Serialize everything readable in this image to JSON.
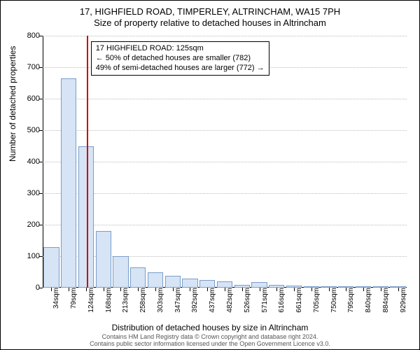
{
  "title": {
    "line1": "17, HIGHFIELD ROAD, TIMPERLEY, ALTRINCHAM, WA15 7PH",
    "line2": "Size of property relative to detached houses in Altrincham"
  },
  "chart": {
    "type": "bar",
    "bar_fill": "#d6e4f5",
    "bar_stroke": "#7a9ec9",
    "background_color": "#ffffff",
    "grid_color": "#bbbbbb",
    "yaxis": {
      "label": "Number of detached properties",
      "min": 0,
      "max": 800,
      "step": 100,
      "label_fontsize": 12,
      "tick_fontsize": 11
    },
    "xaxis": {
      "label": "Distribution of detached houses by size in Altrincham",
      "label_fontsize": 12,
      "tick_fontsize": 10,
      "ticks": [
        "34sqm",
        "79sqm",
        "124sqm",
        "168sqm",
        "213sqm",
        "258sqm",
        "303sqm",
        "347sqm",
        "392sqm",
        "437sqm",
        "482sqm",
        "526sqm",
        "571sqm",
        "616sqm",
        "661sqm",
        "705sqm",
        "750sqm",
        "795sqm",
        "840sqm",
        "884sqm",
        "929sqm"
      ]
    },
    "values": [
      130,
      665,
      450,
      180,
      100,
      65,
      48,
      38,
      30,
      25,
      20,
      8,
      18,
      8,
      6,
      5,
      4,
      4,
      3,
      3,
      2
    ],
    "marker": {
      "color": "#cc0000",
      "x_value": 125,
      "x_range_min": 34,
      "x_range_max": 929
    },
    "infobox": {
      "line1": "17 HIGHFIELD ROAD: 125sqm",
      "line2": "← 50% of detached houses are smaller (782)",
      "line3": "49% of semi-detached houses are larger (772) →",
      "border_color": "#000000",
      "fontsize": 11
    }
  },
  "attribution": {
    "line1": "Contains HM Land Registry data © Crown copyright and database right 2024.",
    "line2": "Contains public sector information licensed under the Open Government Licence v3.0."
  }
}
